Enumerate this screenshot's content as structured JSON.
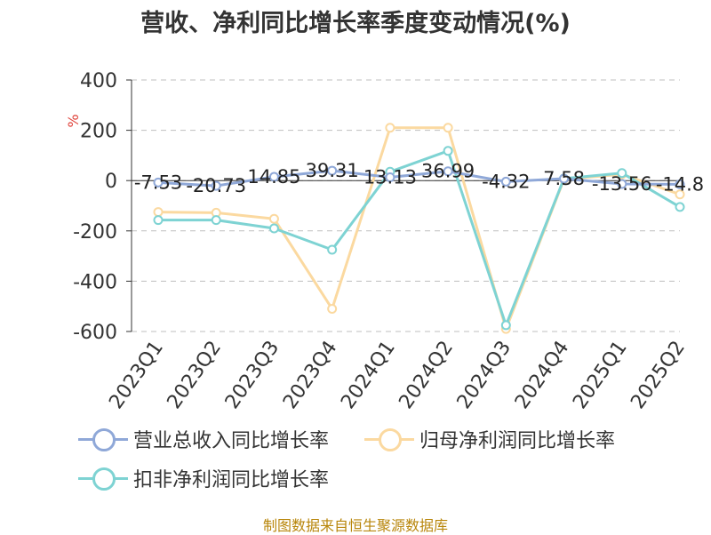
{
  "title": "营收、净利同比增长率季度变动情况(%)",
  "unit_label": "%",
  "source": "制图数据来自恒生聚源数据库",
  "chart_data": {
    "type": "line",
    "title": "营收、净利同比增长率季度变动情况(%)",
    "ylabel": "%",
    "xlabel": "",
    "ylim": [
      -600,
      400
    ],
    "yticks": [
      400,
      200,
      0,
      -200,
      -400,
      -600
    ],
    "grid": true,
    "legend_position": "bottom",
    "categories": [
      "2023Q1",
      "2023Q2",
      "2023Q3",
      "2023Q4",
      "2024Q1",
      "2024Q2",
      "2024Q3",
      "2024Q4",
      "2025Q1",
      "2025Q2"
    ],
    "series": [
      {
        "name": "营业总收入同比增长率",
        "color": "#8fa8d8",
        "values": [
          -7.53,
          -20.73,
          14.85,
          39.31,
          13.13,
          36.99,
          -4.32,
          7.58,
          -13.56,
          -14.8
        ],
        "data_labels": [
          "-7.53",
          "-20.73",
          "14.85",
          "39.31",
          "13.13",
          "36.99",
          "-4.32",
          "7.58",
          "-13.56",
          "-14.8"
        ]
      },
      {
        "name": "归母净利润同比增长率",
        "color": "#fbd9a0",
        "values": [
          -125,
          -128,
          -152,
          -510,
          210,
          210,
          -590,
          5,
          25,
          -55
        ]
      },
      {
        "name": "扣非净利润同比增长率",
        "color": "#7ed3d3",
        "values": [
          -157,
          -157,
          -190,
          -275,
          35,
          118,
          -575,
          8,
          30,
          -105
        ]
      }
    ]
  }
}
